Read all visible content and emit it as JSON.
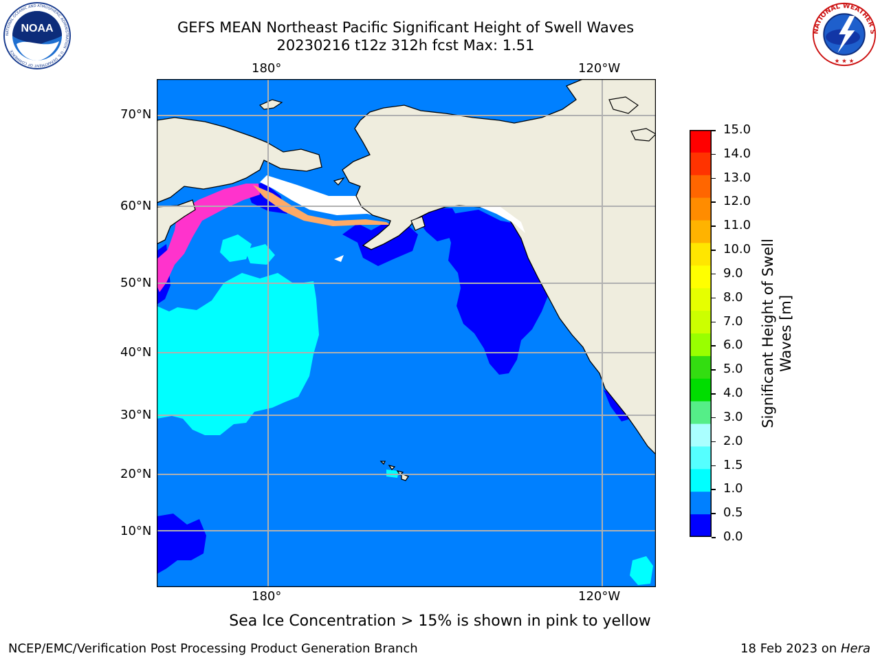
{
  "header": {
    "title_line1": "GEFS MEAN Northeast Pacific Significant Height of Swell Waves",
    "title_line2": "20230216 t12z 312h fcst   Max: 1.51"
  },
  "logos": {
    "left": {
      "icon": "noaa-logo",
      "name": "NOAA",
      "ring_text": "NATIONAL OCEANIC AND ATMOSPHERIC ADMINISTRATION · U.S. DEPARTMENT OF COMMERCE"
    },
    "right": {
      "icon": "nws-logo",
      "ring_text": "NATIONAL WEATHER SERVICE"
    }
  },
  "map": {
    "longitude_labels": [
      "180°",
      "120°W"
    ],
    "latitude_labels": [
      "70°N",
      "60°N",
      "50°N",
      "40°N",
      "30°N",
      "20°N",
      "10°N"
    ],
    "colors": {
      "land": "#efedde",
      "coastline": "#000000",
      "gridline": "#b0b0b0",
      "ocean_0_0.5": "#0000ff",
      "ocean_0.5_1.0": "#0080ff",
      "ocean_1.0_1.5": "#00ffff",
      "sea_ice_edge": "#ff33cc",
      "no_data": "#ffffff"
    }
  },
  "colorbar": {
    "title_line1": "Significant Height of Swell",
    "title_line2": "Waves [m]",
    "tick_labels": [
      "15.0",
      "14.0",
      "13.0",
      "12.0",
      "11.0",
      "10.0",
      "9.0",
      "8.0",
      "7.0",
      "6.0",
      "5.0",
      "4.0",
      "3.0",
      "2.0",
      "1.5",
      "1.0",
      "0.5",
      "0.0"
    ],
    "colors_top_to_bottom": [
      "#ff0000",
      "#ff3300",
      "#ff6600",
      "#ff8c00",
      "#ffb300",
      "#ffe600",
      "#ffff00",
      "#e6ff00",
      "#ccff00",
      "#99ff00",
      "#33dd11",
      "#00dd00",
      "#55ee88",
      "#aaffff",
      "#55ffff",
      "#00ffff",
      "#0080ff",
      "#0000ff"
    ]
  },
  "note": "Sea Ice Concentration > 15% is shown in pink to yellow",
  "footer": {
    "left": "NCEP/EMC/Verification Post Processing Product Generation Branch",
    "right_prefix": "18 Feb 2023 on ",
    "right_host": "Hera"
  }
}
